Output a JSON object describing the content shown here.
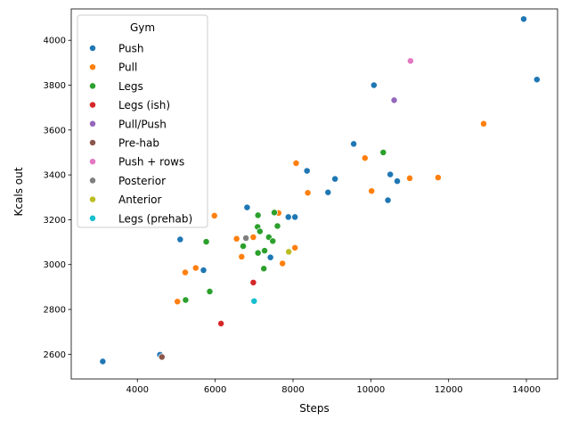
{
  "chart_data": {
    "type": "scatter",
    "xlabel": "Steps",
    "ylabel": "Kcals out",
    "xlim": [
      2300,
      14800
    ],
    "ylim": [
      2490,
      4140
    ],
    "xticks": [
      4000,
      6000,
      8000,
      10000,
      12000,
      14000
    ],
    "yticks": [
      2600,
      2800,
      3000,
      3200,
      3400,
      3600,
      3800,
      4000
    ],
    "grid": false,
    "legend": {
      "title": "Gym",
      "placement": "top-left"
    },
    "series": [
      {
        "name": "Push",
        "color": "#1f77b4",
        "points": [
          [
            13930,
            4095
          ],
          [
            14270,
            3825
          ],
          [
            10080,
            3800
          ],
          [
            9560,
            3538
          ],
          [
            8360,
            3418
          ],
          [
            9080,
            3382
          ],
          [
            8900,
            3322
          ],
          [
            10500,
            3402
          ],
          [
            10680,
            3372
          ],
          [
            10440,
            3287
          ],
          [
            6820,
            3255
          ],
          [
            7880,
            3212
          ],
          [
            8050,
            3212
          ],
          [
            5100,
            3112
          ],
          [
            5700,
            2975
          ],
          [
            7420,
            3032
          ],
          [
            4580,
            2598
          ],
          [
            3110,
            2568
          ],
          [
            7100,
            3050
          ]
        ]
      },
      {
        "name": "Pull",
        "color": "#ff7f0e",
        "points": [
          [
            12900,
            3628
          ],
          [
            9850,
            3475
          ],
          [
            8080,
            3452
          ],
          [
            11000,
            3385
          ],
          [
            11730,
            3388
          ],
          [
            8380,
            3320
          ],
          [
            10020,
            3328
          ],
          [
            7630,
            3230
          ],
          [
            5980,
            3218
          ],
          [
            6980,
            3122
          ],
          [
            6550,
            3115
          ],
          [
            8050,
            3075
          ],
          [
            6680,
            3035
          ],
          [
            7730,
            3005
          ],
          [
            5500,
            2985
          ],
          [
            5230,
            2965
          ],
          [
            5030,
            2835
          ]
        ]
      },
      {
        "name": "Legs",
        "color": "#2ca02c",
        "points": [
          [
            10320,
            3500
          ],
          [
            7520,
            3232
          ],
          [
            7100,
            3220
          ],
          [
            7090,
            3168
          ],
          [
            7600,
            3172
          ],
          [
            7150,
            3148
          ],
          [
            7380,
            3122
          ],
          [
            7480,
            3105
          ],
          [
            5770,
            3102
          ],
          [
            6720,
            3082
          ],
          [
            7270,
            3062
          ],
          [
            7100,
            3052
          ],
          [
            7250,
            2982
          ],
          [
            5860,
            2880
          ],
          [
            5240,
            2842
          ]
        ]
      },
      {
        "name": "Legs (ish)",
        "color": "#d62728",
        "points": [
          [
            6980,
            2920
          ],
          [
            6150,
            2737
          ]
        ]
      },
      {
        "name": "Pull/Push",
        "color": "#9467bd",
        "points": [
          [
            10600,
            3733
          ]
        ]
      },
      {
        "name": "Pre-hab",
        "color": "#8c564b",
        "points": [
          [
            4630,
            2588
          ]
        ]
      },
      {
        "name": "Push + rows",
        "color": "#e377c2",
        "points": [
          [
            11020,
            3908
          ]
        ]
      },
      {
        "name": "Posterior",
        "color": "#7f7f7f",
        "points": [
          [
            6790,
            3118
          ]
        ]
      },
      {
        "name": "Anterior",
        "color": "#bcbd22",
        "points": [
          [
            7890,
            3057
          ]
        ]
      },
      {
        "name": "Legs (prehab)",
        "color": "#17becf",
        "points": [
          [
            7000,
            2837
          ]
        ]
      }
    ]
  }
}
